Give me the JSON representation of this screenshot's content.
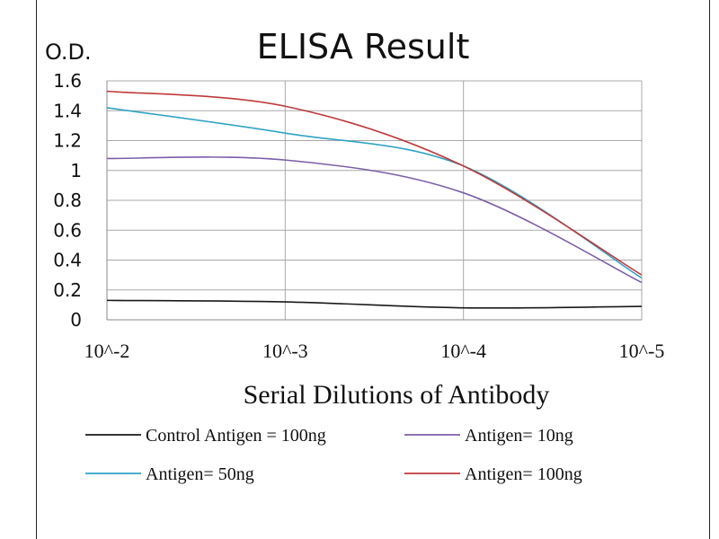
{
  "chart_data": {
    "type": "line",
    "title": "ELISA Result",
    "ylabel": "O.D.",
    "xlabel": "Serial Dilutions  of Antibody",
    "ylim": [
      0,
      1.6
    ],
    "yticks": [
      "0",
      "0.2",
      "0.4",
      "0.6",
      "0.8",
      "1",
      "1.2",
      "1.4",
      "1.6"
    ],
    "x": [
      "10^-2",
      "10^-3",
      "10^-4",
      "10^-5"
    ],
    "grid": true,
    "legend_position": "bottom",
    "series": [
      {
        "name": "Control Antigen = 100ng",
        "color": "#1a1a1a",
        "values": [
          0.13,
          0.12,
          0.08,
          0.09
        ]
      },
      {
        "name": "Antigen= 10ng",
        "color": "#7b5fa8",
        "values": [
          1.08,
          1.07,
          0.85,
          0.25
        ]
      },
      {
        "name": "Antigen= 50ng",
        "color": "#2fa3c4",
        "values": [
          1.42,
          1.25,
          1.03,
          0.28
        ]
      },
      {
        "name": "Antigen= 100ng",
        "color": "#c0393b",
        "values": [
          1.53,
          1.43,
          1.03,
          0.3
        ]
      }
    ]
  }
}
